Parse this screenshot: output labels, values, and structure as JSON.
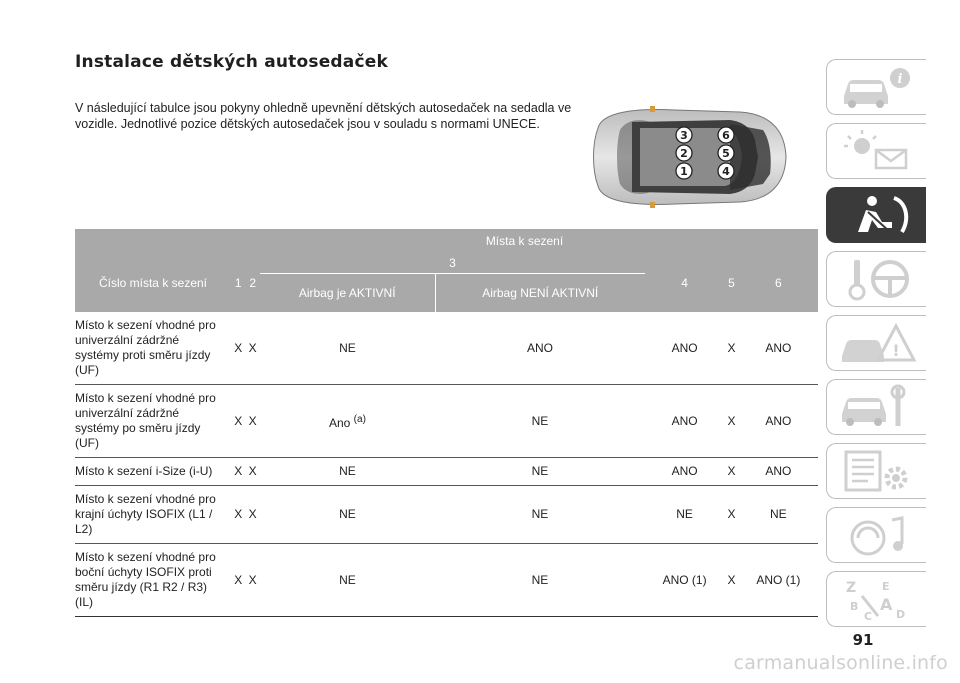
{
  "page": {
    "title": "Instalace dětských autosedaček",
    "intro": "V následující tabulce jsou pokyny ohledně upevnění dětských autosedaček na sedadla ve vozidle. Jednotlivé pozice dětských autosedaček jsou v souladu s normami UNECE.",
    "page_number": "91",
    "watermark": "carmanualsonline.info"
  },
  "car_diagram": {
    "seat_numbers": [
      "3",
      "6",
      "2",
      "5",
      "1",
      "4"
    ]
  },
  "table": {
    "header_group": "Místa k sezení",
    "row_header_label": "Číslo místa k sezení",
    "seat_1": "1",
    "seat_2": "2",
    "seat_3": "3",
    "seat_3_airbag_on": "Airbag je AKTIVNÍ",
    "seat_3_airbag_off": "Airbag NENÍ AKTIVNÍ",
    "seat_4": "4",
    "seat_5": "5",
    "seat_6": "6",
    "rows": [
      {
        "label": "Místo k sezení vhodné pro univerzální zádržné systémy proti směru jízdy (UF)",
        "c1": "X",
        "c2": "X",
        "c3a": "NE",
        "c3b": "ANO",
        "c4": "ANO",
        "c5": "X",
        "c6": "ANO"
      },
      {
        "label": "Místo k sezení vhodné pro univerzální zádržné systémy po směru jízdy (UF)",
        "c1": "X",
        "c2": "X",
        "c3a": "Ano",
        "c3a_sup": "(a)",
        "c3b": "NE",
        "c4": "ANO",
        "c5": "X",
        "c6": "ANO"
      },
      {
        "label": "Místo k sezení i-Size (i-U)",
        "c1": "X",
        "c2": "X",
        "c3a": "NE",
        "c3b": "NE",
        "c4": "ANO",
        "c5": "X",
        "c6": "ANO"
      },
      {
        "label": "Místo k sezení vhodné pro krajní úchyty ISOFIX (L1 / L2)",
        "c1": "X",
        "c2": "X",
        "c3a": "NE",
        "c3b": "NE",
        "c4": "NE",
        "c5": "X",
        "c6": "NE"
      },
      {
        "label": "Místo k sezení vhodné pro boční úchyty ISOFIX proti směru jízdy (R1 R2 / R3) (IL)",
        "c1": "X",
        "c2": "X",
        "c3a": "NE",
        "c3b": "NE",
        "c4": "ANO (1)",
        "c5": "X",
        "c6": "ANO (1)"
      }
    ]
  },
  "side_tabs": [
    {
      "icon": "car-info-icon",
      "active": false
    },
    {
      "icon": "warning-lights-message-icon",
      "active": false
    },
    {
      "icon": "seat-airbag-safety-icon",
      "active": true
    },
    {
      "icon": "key-steering-wheel-icon",
      "active": false
    },
    {
      "icon": "car-emergency-warning-icon",
      "active": false
    },
    {
      "icon": "car-maintenance-wrench-icon",
      "active": false
    },
    {
      "icon": "technical-data-gear-icon",
      "active": false
    },
    {
      "icon": "multimedia-music-icon",
      "active": false
    },
    {
      "icon": "alphabetical-index-icon",
      "active": false
    }
  ]
}
